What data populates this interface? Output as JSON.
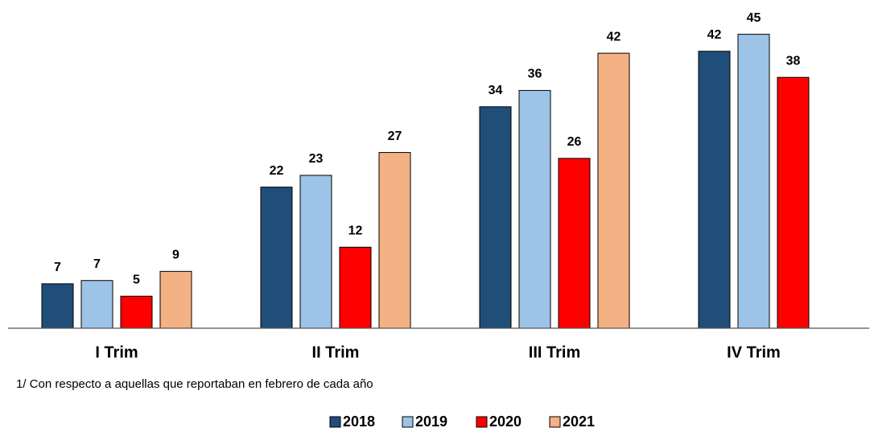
{
  "chart_data": {
    "type": "bar",
    "categories": [
      "I Trim",
      "II Trim",
      "III Trim",
      "IV Trim"
    ],
    "series": [
      {
        "name": "2018",
        "color": "#1f4e79",
        "values": [
          6.8,
          21.6,
          33.9,
          42.4
        ],
        "value_labels": [
          "7",
          "22",
          "34",
          "42"
        ]
      },
      {
        "name": "2019",
        "color": "#9dc3e6",
        "values": [
          7.3,
          23.4,
          36.4,
          45
        ],
        "value_labels": [
          "7",
          "23",
          "36",
          "45"
        ]
      },
      {
        "name": "2020",
        "color": "#ff0000",
        "values": [
          4.9,
          12.4,
          26.0,
          38.4
        ],
        "value_labels": [
          "5",
          "12",
          "26",
          "38"
        ]
      },
      {
        "name": "2021",
        "color": "#f4b183",
        "values": [
          8.7,
          26.9,
          42.1,
          null
        ],
        "value_labels": [
          "9",
          "27",
          "42",
          null
        ]
      }
    ],
    "ylim": [
      0,
      50
    ],
    "footnote": "1/ Con respecto a aquellas que reportaban en febrero de cada año"
  }
}
